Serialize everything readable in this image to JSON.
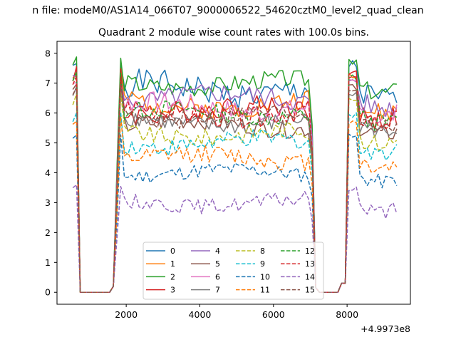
{
  "chart_data": {
    "type": "line",
    "suptitle": "n file: modeM0/AS1A14_066T07_9000006522_54620cztM0_level2_quad_clean",
    "title": "Quadrant 2 module wise count rates with 100.0s bins.",
    "xlabel": "",
    "ylabel": "",
    "x_offset_label": "+4.9973e8",
    "xlim": [
      120,
      9720
    ],
    "ylim": [
      -0.4,
      8.4
    ],
    "xticks": [
      2000,
      4000,
      6000,
      8000
    ],
    "yticks": [
      0,
      1,
      2,
      3,
      4,
      5,
      6,
      7,
      8
    ],
    "grid": false,
    "legend_location": "lower center",
    "legend_columns": 4,
    "time_segments": [
      {
        "x_start": 1850,
        "x_end": 7050
      },
      {
        "x_start": 8050,
        "x_end": 9350
      }
    ],
    "series": [
      {
        "name": "0",
        "color": "#1f77b4",
        "linestyle": "solid",
        "level": 6.8,
        "peak": 7.9,
        "amp": 0.45,
        "seed": 1
      },
      {
        "name": "1",
        "color": "#ff7f0e",
        "linestyle": "solid",
        "level": 6.3,
        "peak": 7.6,
        "amp": 0.35,
        "seed": 2
      },
      {
        "name": "2",
        "color": "#2ca02c",
        "linestyle": "solid",
        "level": 7.0,
        "peak": 8.0,
        "amp": 0.3,
        "seed": 3
      },
      {
        "name": "3",
        "color": "#d62728",
        "linestyle": "solid",
        "level": 6.1,
        "peak": 7.7,
        "amp": 0.35,
        "seed": 4
      },
      {
        "name": "4",
        "color": "#9467bd",
        "linestyle": "solid",
        "level": 6.5,
        "peak": 7.4,
        "amp": 0.35,
        "seed": 5
      },
      {
        "name": "5",
        "color": "#8c564b",
        "linestyle": "solid",
        "level": 5.6,
        "peak": 7.2,
        "amp": 0.3,
        "seed": 6
      },
      {
        "name": "6",
        "color": "#e377c2",
        "linestyle": "solid",
        "level": 6.2,
        "peak": 7.3,
        "amp": 0.35,
        "seed": 7
      },
      {
        "name": "7",
        "color": "#7f7f7f",
        "linestyle": "solid",
        "level": 5.7,
        "peak": 7.0,
        "amp": 0.3,
        "seed": 8
      },
      {
        "name": "8",
        "color": "#bcbd22",
        "linestyle": "dashed",
        "level": 5.3,
        "peak": 6.8,
        "amp": 0.3,
        "seed": 9
      },
      {
        "name": "9",
        "color": "#17becf",
        "linestyle": "dashed",
        "level": 5.0,
        "peak": 6.2,
        "amp": 0.3,
        "seed": 10
      },
      {
        "name": "10",
        "color": "#1f77b4",
        "linestyle": "dashed",
        "level": 4.0,
        "peak": 5.5,
        "amp": 0.25,
        "seed": 11
      },
      {
        "name": "11",
        "color": "#ff7f0e",
        "linestyle": "dashed",
        "level": 4.5,
        "peak": 6.0,
        "amp": 0.3,
        "seed": 12
      },
      {
        "name": "12",
        "color": "#2ca02c",
        "linestyle": "dashed",
        "level": 6.0,
        "peak": 7.5,
        "amp": 0.3,
        "seed": 13
      },
      {
        "name": "13",
        "color": "#d62728",
        "linestyle": "dashed",
        "level": 6.0,
        "peak": 7.4,
        "amp": 0.35,
        "seed": 14
      },
      {
        "name": "14",
        "color": "#9467bd",
        "linestyle": "dashed",
        "level": 3.0,
        "peak": 3.8,
        "amp": 0.25,
        "seed": 15
      },
      {
        "name": "15",
        "color": "#8c564b",
        "linestyle": "dashed",
        "level": 5.9,
        "peak": 7.1,
        "amp": 0.3,
        "seed": 16
      }
    ]
  }
}
